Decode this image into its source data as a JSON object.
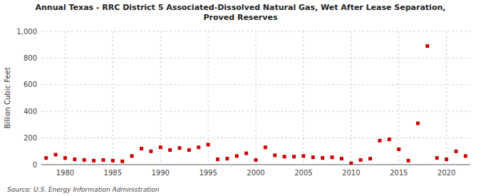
{
  "chart_data": {
    "type": "scatter",
    "title": "Annual Texas - RRC District 5 Associated-Dissolved Natural Gas, Wet After Lease Separation,\nProved Reserves",
    "y_label": "Billion Cubic Feet",
    "source": "Source: U.S. Energy Information Administration",
    "color": "#cc0000",
    "marker": "square",
    "grid": true,
    "xlim": [
      1977.5,
      2022.5
    ],
    "ylim": [
      0,
      1000
    ],
    "xticks": [
      1980,
      1985,
      1990,
      1995,
      2000,
      2005,
      2010,
      2015,
      2020
    ],
    "yticks": [
      0,
      200,
      400,
      600,
      800,
      {
        "value": 1000,
        "label": "1,000"
      }
    ],
    "x": [
      1978,
      1979,
      1980,
      1981,
      1982,
      1983,
      1984,
      1985,
      1986,
      1987,
      1988,
      1989,
      1990,
      1991,
      1992,
      1993,
      1994,
      1995,
      1996,
      1997,
      1998,
      1999,
      2000,
      2001,
      2002,
      2003,
      2004,
      2005,
      2006,
      2007,
      2008,
      2009,
      2010,
      2011,
      2012,
      2013,
      2014,
      2015,
      2016,
      2017,
      2018,
      2019,
      2020,
      2021,
      2022
    ],
    "values": [
      50,
      75,
      50,
      40,
      35,
      30,
      35,
      30,
      25,
      65,
      120,
      100,
      130,
      110,
      125,
      110,
      130,
      150,
      40,
      45,
      65,
      85,
      35,
      130,
      70,
      60,
      60,
      65,
      55,
      50,
      55,
      45,
      10,
      35,
      45,
      180,
      190,
      115,
      30,
      310,
      890,
      50,
      40,
      100,
      65
    ]
  }
}
